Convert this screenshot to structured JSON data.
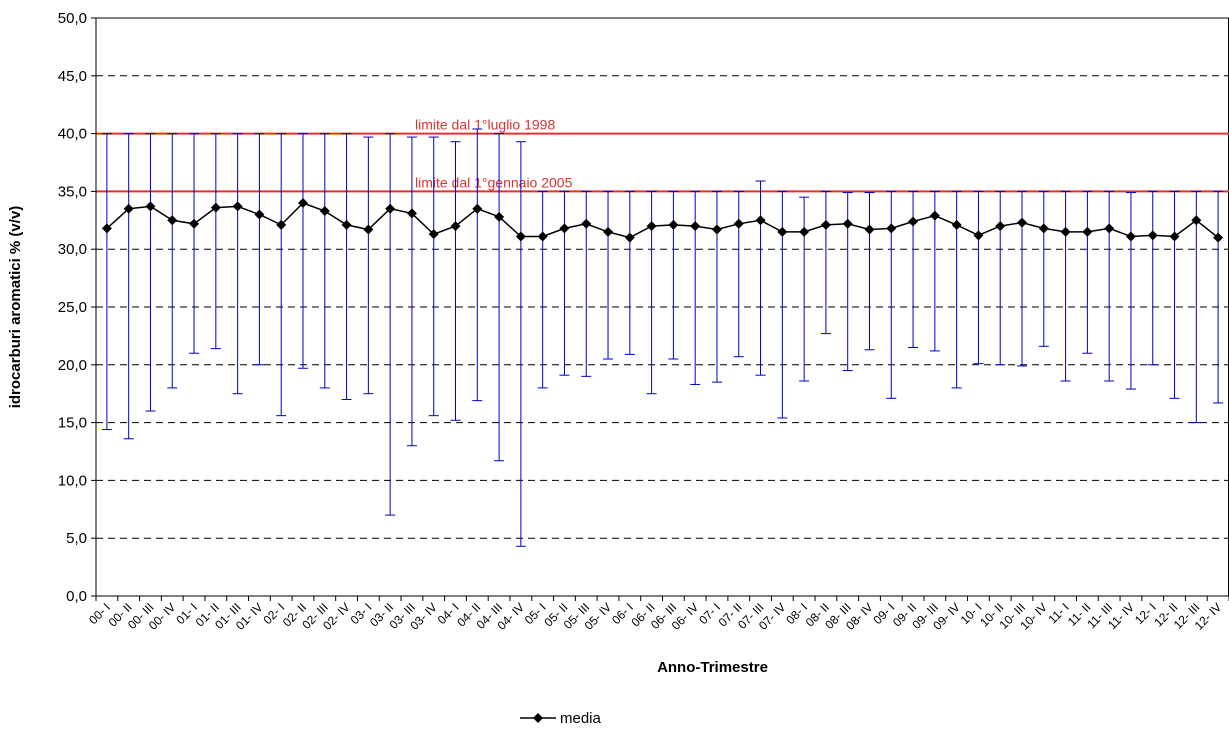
{
  "chart_data": {
    "type": "line",
    "xlabel": "Anno-Trimestre",
    "ylabel": "idrocarburi aromatici % (v/v)",
    "ylim": [
      0,
      50
    ],
    "y_ticks": [
      "0,0",
      "5,0",
      "10,0",
      "15,0",
      "20,0",
      "25,0",
      "30,0",
      "35,0",
      "40,0",
      "45,0",
      "50,0"
    ],
    "grid": "horizontal dashed",
    "categories": [
      "00- I",
      "00- II",
      "00- III",
      "00- IV",
      "01- I",
      "01- II",
      "01- III",
      "01- IV",
      "02- I",
      "02- II",
      "02- III",
      "02- IV",
      "03- I",
      "03- II",
      "03- III",
      "03- IV",
      "04- I",
      "04- II",
      "04- III",
      "04- IV",
      "05- I",
      "05- II",
      "05- III",
      "05- IV",
      "06- I",
      "06- II",
      "06- III",
      "06- IV",
      "07- I",
      "07- II",
      "07- III",
      "07- IV",
      "08- I",
      "08- II",
      "08- III",
      "08- IV",
      "09- I",
      "09- II",
      "09- III",
      "09- IV",
      "10- I",
      "10- II",
      "10- III",
      "10- IV",
      "11- I",
      "11- II",
      "11- III",
      "11- IV",
      "12- I",
      "12- II",
      "12- III",
      "12- IV"
    ],
    "series": [
      {
        "name": "media",
        "color": "#000000",
        "marker": "diamond",
        "values": [
          31.8,
          33.5,
          33.7,
          32.5,
          32.2,
          33.6,
          33.7,
          33.0,
          32.1,
          34.0,
          33.3,
          32.1,
          31.7,
          33.5,
          33.1,
          31.3,
          32.0,
          33.5,
          32.8,
          31.1,
          31.1,
          31.8,
          32.2,
          31.5,
          31.0,
          32.0,
          32.1,
          32.0,
          31.7,
          32.2,
          32.5,
          31.5,
          31.5,
          32.1,
          32.2,
          31.7,
          31.8,
          32.4,
          32.9,
          32.1,
          31.2,
          32.0,
          32.3,
          31.8,
          31.5,
          31.5,
          31.8,
          31.1,
          31.2,
          31.1,
          32.5,
          31.0
        ]
      }
    ],
    "error_bars": {
      "color": "#0000cc",
      "max": [
        40.0,
        40.0,
        40.0,
        40.0,
        40.0,
        40.0,
        40.0,
        40.0,
        40.0,
        40.0,
        40.0,
        40.0,
        39.7,
        40.0,
        39.7,
        39.7,
        39.3,
        40.4,
        40.0,
        39.3,
        35.0,
        35.0,
        35.0,
        35.0,
        35.0,
        35.0,
        35.0,
        35.0,
        35.0,
        35.0,
        35.9,
        35.0,
        34.5,
        35.0,
        34.9,
        34.9,
        35.0,
        35.0,
        35.0,
        35.0,
        35.0,
        35.0,
        35.0,
        35.0,
        35.0,
        35.0,
        35.0,
        34.9,
        35.0,
        35.0,
        35.0,
        35.0
      ],
      "min": [
        14.4,
        13.6,
        16.0,
        18.0,
        21.0,
        21.4,
        17.5,
        20.0,
        15.6,
        19.7,
        18.0,
        17.0,
        17.5,
        7.0,
        13.0,
        15.6,
        15.2,
        16.9,
        11.7,
        4.3,
        18.0,
        19.1,
        19.0,
        20.5,
        20.9,
        17.5,
        20.5,
        18.3,
        18.5,
        20.7,
        19.1,
        15.4,
        18.6,
        22.7,
        19.5,
        21.3,
        17.1,
        21.5,
        21.2,
        18.0,
        20.1,
        20.0,
        19.9,
        21.6,
        18.6,
        21.0,
        18.6,
        17.9,
        20.0,
        17.1,
        15.0,
        16.7
      ]
    },
    "reference_lines": [
      {
        "label": "limite dal 1°luglio 1998",
        "value": 40.0,
        "color": "#e03030"
      },
      {
        "label": "limite dal 1°gennaio 2005",
        "value": 35.0,
        "color": "#e03030"
      }
    ],
    "legend": {
      "position": "bottom-center",
      "entries": [
        "media"
      ]
    }
  }
}
